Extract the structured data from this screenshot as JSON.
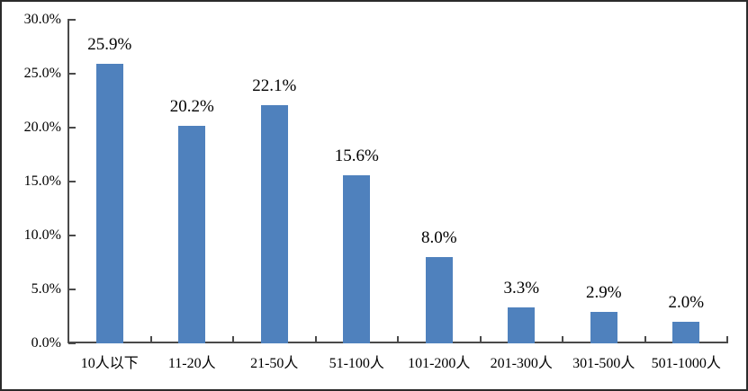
{
  "chart_data": {
    "type": "bar",
    "title": "",
    "xlabel": "",
    "ylabel": "",
    "categories": [
      "10人以下",
      "11-20人",
      "21-50人",
      "51-100人",
      "101-200人",
      "201-300人",
      "301-500人",
      "501-1000人"
    ],
    "values": [
      25.9,
      20.2,
      22.1,
      15.6,
      8.0,
      3.3,
      2.9,
      2.0
    ],
    "data_labels": [
      "25.9%",
      "20.2%",
      "22.1%",
      "15.6%",
      "8.0%",
      "3.3%",
      "2.9%",
      "2.0%"
    ],
    "y_tick_values": [
      0,
      5,
      10,
      15,
      20,
      25,
      30
    ],
    "y_tick_labels": [
      "0.0%",
      "5.0%",
      "10.0%",
      "15.0%",
      "20.0%",
      "25.0%",
      "30.0%"
    ],
    "ylim": [
      0,
      30
    ],
    "grid": false,
    "legend": "none",
    "bar_color": "#4F81BD",
    "axis_color": "#4a4a4a",
    "text_color": "#000000"
  }
}
